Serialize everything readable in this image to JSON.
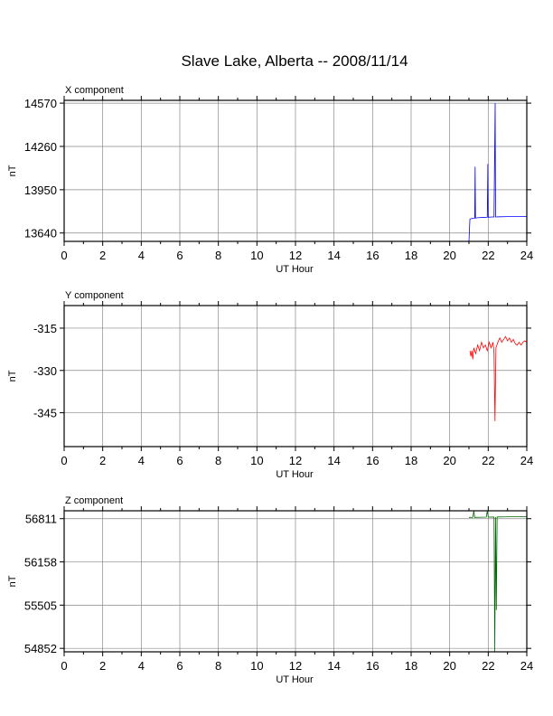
{
  "title": "Slave Lake, Alberta -- 2008/11/14",
  "colors": {
    "x": "#0000ff",
    "y": "#ff0000",
    "z": "#006400",
    "grid": "#888888"
  },
  "chart_data": [
    {
      "type": "line",
      "title": "X component",
      "xlabel": "UT Hour",
      "ylabel": "nT",
      "xlim": [
        0,
        24
      ],
      "ylim": [
        13580,
        14590
      ],
      "x_ticks": [
        0,
        2,
        4,
        6,
        8,
        10,
        12,
        14,
        16,
        18,
        20,
        22,
        24
      ],
      "y_ticks": [
        14570,
        14260,
        13950,
        13640
      ],
      "grid": true,
      "series": [
        {
          "color": "#0000ff",
          "points": [
            [
              21.0,
              13580
            ],
            [
              21.05,
              13740
            ],
            [
              21.2,
              13745
            ],
            [
              21.3,
              13747
            ],
            [
              21.32,
              14115
            ],
            [
              21.34,
              13747
            ],
            [
              21.5,
              13750
            ],
            [
              21.8,
              13752
            ],
            [
              21.95,
              13753
            ],
            [
              21.98,
              14135
            ],
            [
              22.0,
              13753
            ],
            [
              22.2,
              13755
            ],
            [
              22.3,
              13755
            ],
            [
              22.34,
              14300
            ],
            [
              22.36,
              14570
            ],
            [
              22.38,
              13755
            ],
            [
              22.6,
              13756
            ],
            [
              23.0,
              13757
            ],
            [
              23.5,
              13758
            ],
            [
              24.0,
              13759
            ]
          ]
        }
      ]
    },
    {
      "type": "line",
      "title": "Y component",
      "xlabel": "UT Hour",
      "ylabel": "nT",
      "xlim": [
        0,
        24
      ],
      "ylim": [
        -357,
        -307
      ],
      "x_ticks": [
        0,
        2,
        4,
        6,
        8,
        10,
        12,
        14,
        16,
        18,
        20,
        22,
        24
      ],
      "y_ticks": [
        -315,
        -330,
        -345
      ],
      "grid": true,
      "series": [
        {
          "color": "#ff0000",
          "points": [
            [
              21.05,
              -323
            ],
            [
              21.1,
              -325
            ],
            [
              21.15,
              -323
            ],
            [
              21.2,
              -326
            ],
            [
              21.25,
              -322
            ],
            [
              21.35,
              -324
            ],
            [
              21.45,
              -321
            ],
            [
              21.55,
              -323
            ],
            [
              21.65,
              -320
            ],
            [
              21.75,
              -322
            ],
            [
              21.85,
              -321
            ],
            [
              21.95,
              -323
            ],
            [
              22.05,
              -320
            ],
            [
              22.15,
              -322
            ],
            [
              22.25,
              -320
            ],
            [
              22.3,
              -324
            ],
            [
              22.35,
              -348
            ],
            [
              22.4,
              -322
            ],
            [
              22.5,
              -320
            ],
            [
              22.6,
              -318.5
            ],
            [
              22.7,
              -320
            ],
            [
              22.8,
              -319
            ],
            [
              22.9,
              -318
            ],
            [
              23.0,
              -319.5
            ],
            [
              23.1,
              -318.5
            ],
            [
              23.2,
              -320
            ],
            [
              23.3,
              -319
            ],
            [
              23.4,
              -320.5
            ],
            [
              23.5,
              -321
            ],
            [
              23.6,
              -320
            ],
            [
              23.7,
              -321
            ],
            [
              23.8,
              -320
            ],
            [
              23.9,
              -319.5
            ],
            [
              24.0,
              -320
            ]
          ]
        }
      ]
    },
    {
      "type": "line",
      "title": "Z component",
      "xlabel": "UT Hour",
      "ylabel": "nT",
      "xlim": [
        0,
        24
      ],
      "ylim": [
        54800,
        56930
      ],
      "x_ticks": [
        0,
        2,
        4,
        6,
        8,
        10,
        12,
        14,
        16,
        18,
        20,
        22,
        24
      ],
      "y_ticks": [
        56811,
        56158,
        55505,
        54852
      ],
      "grid": true,
      "series": [
        {
          "color": "#006400",
          "points": [
            [
              21.0,
              56830
            ],
            [
              21.2,
              56832
            ],
            [
              21.25,
              56930
            ],
            [
              21.3,
              56830
            ],
            [
              21.6,
              56833
            ],
            [
              21.9,
              56834
            ],
            [
              21.95,
              56930
            ],
            [
              22.0,
              56834
            ],
            [
              22.2,
              56835
            ],
            [
              22.3,
              56836
            ],
            [
              22.34,
              54800
            ],
            [
              22.38,
              56836
            ],
            [
              22.42,
              55430
            ],
            [
              22.46,
              56837
            ],
            [
              22.8,
              56838
            ],
            [
              23.2,
              56839
            ],
            [
              23.6,
              56840
            ],
            [
              24.0,
              56840
            ]
          ]
        }
      ]
    }
  ]
}
